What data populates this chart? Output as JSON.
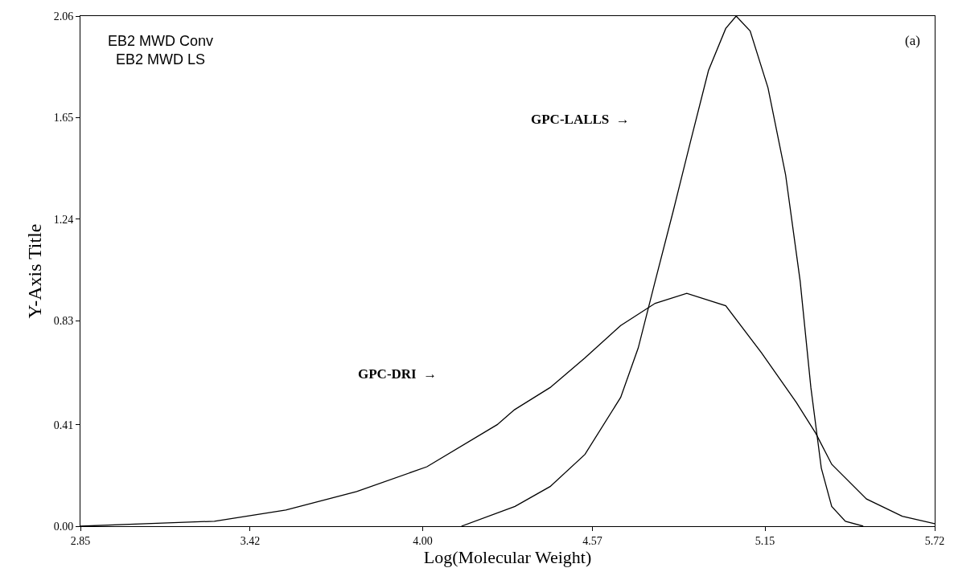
{
  "chart_data": {
    "type": "line",
    "xlabel": "Log(Molecular Weight)",
    "ylabel": "Y-Axis Title",
    "xlim": [
      2.85,
      5.72
    ],
    "xticks": [
      {
        "value": 2.85,
        "label": "2.85"
      },
      {
        "value": 3.42,
        "label": "3.42"
      },
      {
        "value": 4.0,
        "label": "4.00"
      },
      {
        "value": 4.57,
        "label": "4.57"
      },
      {
        "value": 5.15,
        "label": "5.15"
      },
      {
        "value": 5.72,
        "label": "5.72"
      }
    ],
    "ylim": [
      0,
      2.06
    ],
    "yticks": [
      {
        "value": 0,
        "label": "0.00"
      },
      0.41,
      0.83,
      1.24,
      1.65,
      2.06
    ],
    "marker": "none",
    "line_style": "solid",
    "series": [
      {
        "color": "#000000",
        "x": [
          2.85,
          3.07,
          3.3,
          3.54,
          3.778,
          4.014,
          4.25,
          4.308,
          4.428,
          4.545,
          4.665,
          4.781,
          4.887,
          5.018,
          5.138,
          5.255,
          5.32,
          5.374,
          5.491,
          5.611,
          5.72
        ],
        "values": [
          0.0,
          0.01,
          0.02,
          0.065,
          0.14,
          0.24,
          0.41,
          0.47,
          0.56,
          0.68,
          0.81,
          0.9,
          0.94,
          0.89,
          0.7,
          0.5,
          0.376,
          0.25,
          0.11,
          0.04,
          0.01
        ]
      },
      {
        "color": "#000000",
        "x": [
          4.13,
          4.31,
          4.428,
          4.545,
          4.665,
          4.724,
          4.781,
          4.841,
          4.901,
          4.96,
          5.018,
          5.053,
          5.1,
          5.16,
          5.219,
          5.268,
          5.304,
          5.339,
          5.374,
          5.42,
          5.48
        ],
        "values": [
          0.0,
          0.08,
          0.16,
          0.29,
          0.52,
          0.72,
          0.99,
          1.27,
          1.56,
          1.84,
          2.01,
          2.06,
          2.0,
          1.77,
          1.42,
          0.99,
          0.56,
          0.235,
          0.08,
          0.02,
          0.0
        ]
      }
    ],
    "annotations": [
      "EB2 MWD Conv\nEB2 MWD LS",
      "(a)",
      "GPC-LALLS  →",
      "GPC-DRI  →"
    ]
  }
}
